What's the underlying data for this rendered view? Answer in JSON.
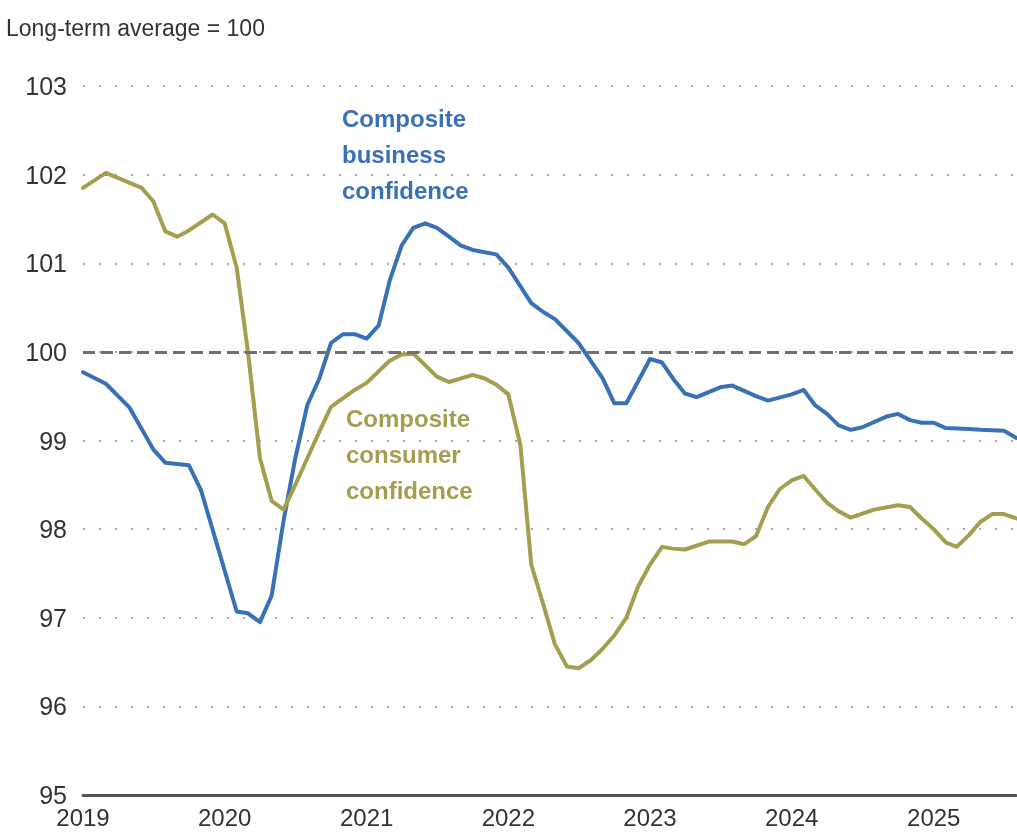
{
  "chart_data": {
    "type": "line",
    "ylabel": "Long-term average = 100",
    "xlim": [
      "2019-01",
      "2025-08"
    ],
    "xticks": [
      "2019",
      "2020",
      "2021",
      "2022",
      "2023",
      "2024",
      "2025"
    ],
    "ylim": [
      95,
      103
    ],
    "yticks": [
      95,
      96,
      97,
      98,
      99,
      100,
      101,
      102,
      103
    ],
    "grid": "y",
    "legend": false,
    "marker": "none",
    "line_style": "solid",
    "ref_lines": [
      {
        "axis": "y",
        "value": 100,
        "color": "#707070",
        "line_style": "dashed"
      }
    ],
    "series": [
      {
        "name": "Composite business confidence",
        "color": "#3a70b5",
        "x": [
          "2019-01",
          "2019-03",
          "2019-05",
          "2019-07",
          "2019-08",
          "2019-10",
          "2019-11",
          "2020-02",
          "2020-03",
          "2020-04",
          "2020-05",
          "2020-06",
          "2020-07",
          "2020-08",
          "2020-09",
          "2020-10",
          "2020-11",
          "2020-12",
          "2021-01",
          "2021-02",
          "2021-03",
          "2021-04",
          "2021-05",
          "2021-06",
          "2021-07",
          "2021-08",
          "2021-09",
          "2021-10",
          "2021-12",
          "2022-01",
          "2022-03",
          "2022-04",
          "2022-05",
          "2022-07",
          "2022-08",
          "2022-09",
          "2022-10",
          "2022-11",
          "2023-01",
          "2023-02",
          "2023-03",
          "2023-04",
          "2023-05",
          "2023-07",
          "2023-08",
          "2023-10",
          "2023-11",
          "2024-01",
          "2024-02",
          "2024-03",
          "2024-04",
          "2024-05",
          "2024-06",
          "2024-07",
          "2024-09",
          "2024-10",
          "2024-11",
          "2024-12",
          "2025-01",
          "2025-02",
          "2025-04",
          "2025-05",
          "2025-07",
          "2025-08"
        ],
        "values": [
          99.77,
          99.64,
          99.37,
          98.9,
          98.75,
          98.72,
          98.44,
          97.07,
          97.05,
          96.95,
          97.25,
          98.1,
          98.8,
          99.4,
          99.7,
          100.1,
          100.2,
          100.2,
          100.15,
          100.3,
          100.8,
          101.2,
          101.4,
          101.45,
          101.4,
          101.3,
          101.2,
          101.15,
          101.1,
          100.95,
          100.55,
          100.45,
          100.37,
          100.1,
          99.9,
          99.7,
          99.42,
          99.42,
          99.92,
          99.88,
          99.7,
          99.53,
          99.49,
          99.6,
          99.62,
          99.5,
          99.45,
          99.52,
          99.57,
          99.4,
          99.3,
          99.17,
          99.12,
          99.15,
          99.27,
          99.3,
          99.23,
          99.2,
          99.2,
          99.14,
          99.13,
          99.12,
          99.11,
          99.03
        ]
      },
      {
        "name": "Composite consumer confidence",
        "color": "#a39e50",
        "x": [
          "2019-01",
          "2019-03",
          "2019-06",
          "2019-07",
          "2019-08",
          "2019-09",
          "2019-10",
          "2019-12",
          "2020-01",
          "2020-02",
          "2020-03",
          "2020-04",
          "2020-05",
          "2020-06",
          "2020-07",
          "2020-08",
          "2020-09",
          "2020-10",
          "2020-12",
          "2021-01",
          "2021-03",
          "2021-04",
          "2021-05",
          "2021-07",
          "2021-08",
          "2021-10",
          "2021-11",
          "2021-12",
          "2022-01",
          "2022-02",
          "2022-03",
          "2022-04",
          "2022-05",
          "2022-06",
          "2022-07",
          "2022-08",
          "2022-09",
          "2022-10",
          "2022-11",
          "2022-12",
          "2023-01",
          "2023-02",
          "2023-03",
          "2023-04",
          "2023-06",
          "2023-08",
          "2023-09",
          "2023-10",
          "2023-11",
          "2023-12",
          "2024-01",
          "2024-02",
          "2024-03",
          "2024-04",
          "2024-05",
          "2024-06",
          "2024-08",
          "2024-10",
          "2024-11",
          "2024-12",
          "2025-01",
          "2025-02",
          "2025-03",
          "2025-04",
          "2025-05",
          "2025-06",
          "2025-07",
          "2025-08"
        ],
        "values": [
          101.85,
          102.02,
          101.85,
          101.7,
          101.36,
          101.3,
          101.37,
          101.55,
          101.45,
          100.95,
          100.0,
          98.8,
          98.32,
          98.22,
          98.5,
          98.8,
          99.1,
          99.38,
          99.57,
          99.65,
          99.9,
          99.97,
          99.98,
          99.72,
          99.66,
          99.74,
          99.7,
          99.63,
          99.52,
          98.95,
          97.6,
          97.15,
          96.7,
          96.45,
          96.43,
          96.52,
          96.65,
          96.8,
          97.0,
          97.35,
          97.6,
          97.8,
          97.78,
          97.77,
          97.86,
          97.86,
          97.83,
          97.92,
          98.25,
          98.45,
          98.55,
          98.6,
          98.45,
          98.3,
          98.2,
          98.13,
          98.22,
          98.27,
          98.25,
          98.12,
          98.0,
          97.85,
          97.8,
          97.93,
          98.08,
          98.17,
          98.17,
          98.12
        ]
      }
    ]
  }
}
